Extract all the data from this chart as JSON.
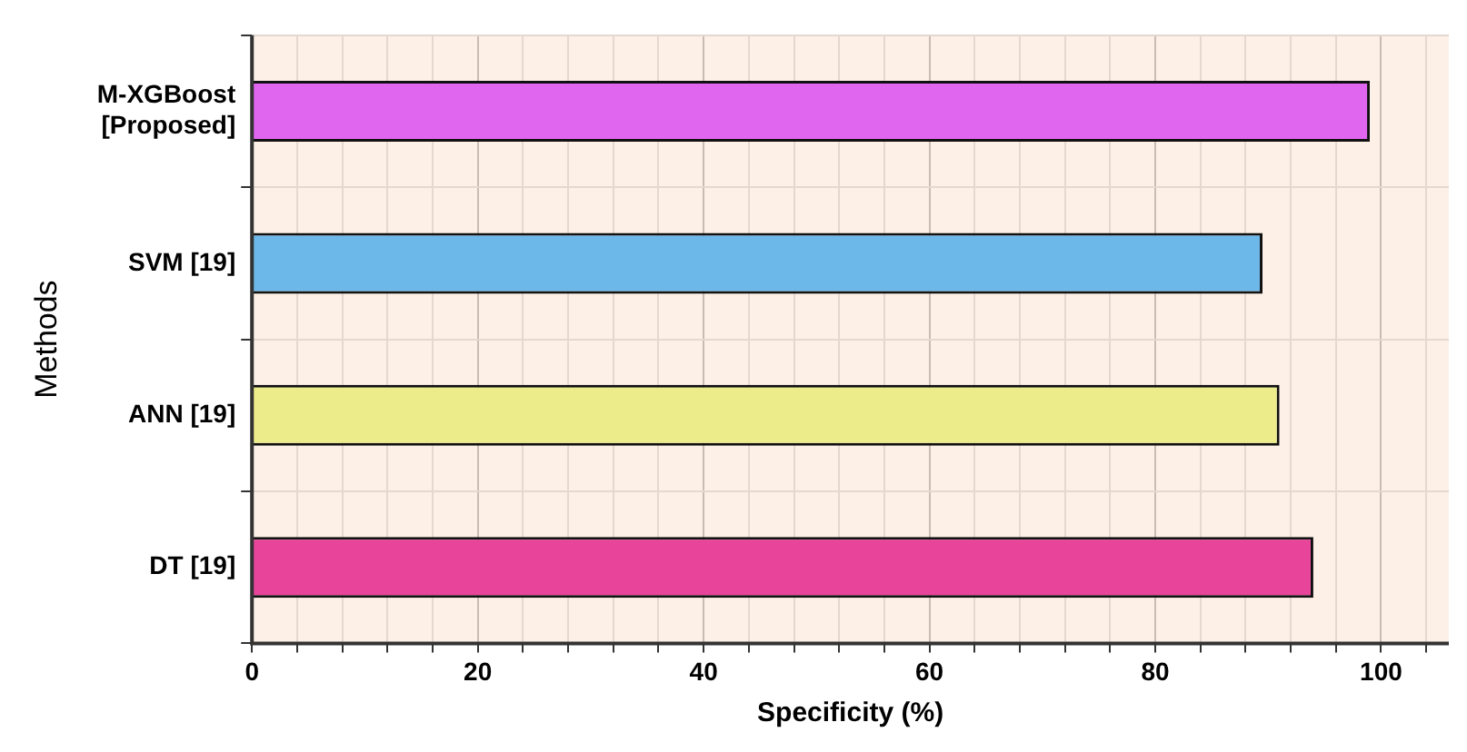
{
  "chart_data": {
    "type": "bar",
    "orientation": "horizontal",
    "xlabel": "Specificity (%)",
    "ylabel": "Methods",
    "categories": [
      "M-XGBoost\n[Proposed]",
      "SVM [19]",
      "ANN [19]",
      "DT [19]"
    ],
    "values": [
      99.0,
      89.5,
      91.0,
      94.0
    ],
    "colors": [
      "#e066f0",
      "#6cb8e8",
      "#ecec8a",
      "#e8449a"
    ],
    "xlim": [
      0,
      106
    ],
    "xticks": [
      0,
      {
        "value": 4,
        "label": null
      },
      {
        "value": 8,
        "label": null
      },
      {
        "value": 12,
        "label": null
      },
      {
        "value": 16,
        "label": null
      },
      20,
      {
        "value": 24,
        "label": null
      },
      {
        "value": 28,
        "label": null
      },
      {
        "value": 32,
        "label": null
      },
      {
        "value": 36,
        "label": null
      },
      40,
      {
        "value": 44,
        "label": null
      },
      {
        "value": 48,
        "label": null
      },
      {
        "value": 52,
        "label": null
      },
      {
        "value": 56,
        "label": null
      },
      60,
      {
        "value": 64,
        "label": null
      },
      {
        "value": 68,
        "label": null
      },
      {
        "value": 72,
        "label": null
      },
      {
        "value": 76,
        "label": null
      },
      80,
      {
        "value": 84,
        "label": null
      },
      {
        "value": 88,
        "label": null
      },
      {
        "value": 92,
        "label": null
      },
      {
        "value": 96,
        "label": null
      },
      100,
      {
        "value": 104,
        "label": null
      }
    ],
    "grid": true
  }
}
